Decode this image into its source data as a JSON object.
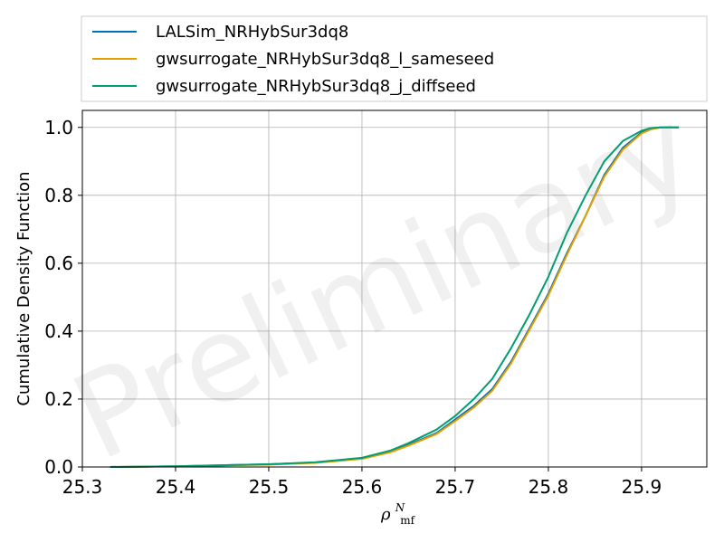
{
  "chart_data": {
    "type": "line",
    "title": "",
    "xlabel": "ρ",
    "xlabel_sup": "N",
    "xlabel_sub": "mf",
    "ylabel": "Cumulative Density Function",
    "xlim": [
      25.3,
      25.97
    ],
    "ylim": [
      0.0,
      1.05
    ],
    "x_ticks": [
      "25.3",
      "25.4",
      "25.5",
      "25.6",
      "25.7",
      "25.8",
      "25.9"
    ],
    "y_ticks": [
      "0.0",
      "0.2",
      "0.4",
      "0.6",
      "0.8",
      "1.0"
    ],
    "grid": true,
    "legend_position": "above-plot",
    "watermark": "Preliminary",
    "series": [
      {
        "name": "LALSim_NRHybSur3dq8",
        "color": "#0072b2",
        "x": [
          25.33,
          25.4,
          25.5,
          25.55,
          25.6,
          25.63,
          25.65,
          25.68,
          25.7,
          25.72,
          25.74,
          25.76,
          25.78,
          25.8,
          25.82,
          25.84,
          25.86,
          25.88,
          25.9,
          25.91,
          25.92,
          25.94
        ],
        "y": [
          0.0,
          0.002,
          0.008,
          0.013,
          0.025,
          0.045,
          0.065,
          0.1,
          0.14,
          0.18,
          0.23,
          0.31,
          0.41,
          0.51,
          0.63,
          0.74,
          0.86,
          0.94,
          0.985,
          0.995,
          1.0,
          1.0
        ]
      },
      {
        "name": "gwsurrogate_NRHybSur3dq8_l_sameseed",
        "color": "#e69f00",
        "x": [
          25.33,
          25.4,
          25.5,
          25.55,
          25.6,
          25.63,
          25.65,
          25.68,
          25.7,
          25.72,
          25.74,
          25.76,
          25.78,
          25.8,
          25.82,
          25.84,
          25.86,
          25.88,
          25.9,
          25.91,
          25.92,
          25.94
        ],
        "y": [
          0.0,
          0.002,
          0.007,
          0.012,
          0.024,
          0.043,
          0.063,
          0.097,
          0.135,
          0.175,
          0.225,
          0.305,
          0.405,
          0.505,
          0.625,
          0.74,
          0.855,
          0.935,
          0.982,
          0.994,
          1.0,
          1.0
        ]
      },
      {
        "name": "gwsurrogate_NRHybSur3dq8_j_diffseed",
        "color": "#009e73",
        "x": [
          25.33,
          25.4,
          25.5,
          25.55,
          25.6,
          25.63,
          25.65,
          25.68,
          25.7,
          25.72,
          25.74,
          25.76,
          25.78,
          25.8,
          25.82,
          25.84,
          25.86,
          25.88,
          25.9,
          25.91,
          25.92,
          25.94
        ],
        "y": [
          0.0,
          0.002,
          0.008,
          0.014,
          0.027,
          0.048,
          0.07,
          0.11,
          0.15,
          0.2,
          0.26,
          0.35,
          0.45,
          0.56,
          0.69,
          0.8,
          0.9,
          0.96,
          0.99,
          0.998,
          1.0,
          1.0
        ]
      }
    ]
  }
}
